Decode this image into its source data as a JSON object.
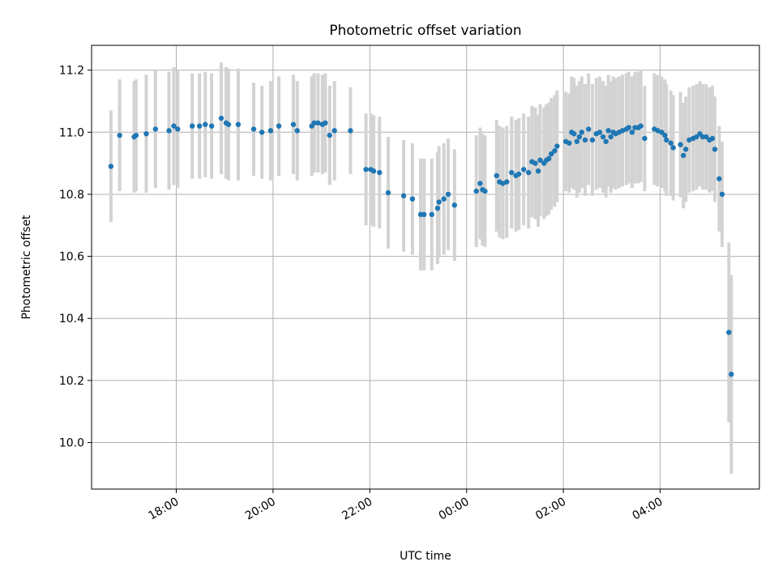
{
  "chart_data": {
    "type": "scatter",
    "title": "Photometric offset variation",
    "xlabel": "UTC time",
    "ylabel": "Photometric offset",
    "x_unit": "hours UTC (values past 24 are after midnight)",
    "xlim": [
      16.25,
      30.05
    ],
    "ylim": [
      9.85,
      11.28
    ],
    "x_ticks": [
      {
        "value": 18,
        "label": "18:00"
      },
      {
        "value": 20,
        "label": "20:00"
      },
      {
        "value": 22,
        "label": "22:00"
      },
      {
        "value": 24,
        "label": "00:00"
      },
      {
        "value": 26,
        "label": "02:00"
      },
      {
        "value": 28,
        "label": "04:00"
      }
    ],
    "y_ticks": [
      {
        "value": 10.0,
        "label": "10.0"
      },
      {
        "value": 10.2,
        "label": "10.2"
      },
      {
        "value": 10.4,
        "label": "10.4"
      },
      {
        "value": 10.6,
        "label": "10.6"
      },
      {
        "value": 10.8,
        "label": "10.8"
      },
      {
        "value": 11.0,
        "label": "11.0"
      },
      {
        "value": 11.2,
        "label": "11.2"
      }
    ],
    "grid": true,
    "colors": {
      "points": "#1f77b4",
      "errorbars": "#d3d3d3",
      "grid": "#b0b0b0"
    },
    "points": [
      [
        16.65,
        10.89,
        0.18
      ],
      [
        16.83,
        10.99,
        0.18
      ],
      [
        17.13,
        10.985,
        0.18
      ],
      [
        17.17,
        10.99,
        0.18
      ],
      [
        17.38,
        10.995,
        0.19
      ],
      [
        17.57,
        11.01,
        0.19
      ],
      [
        17.85,
        11.005,
        0.19
      ],
      [
        17.95,
        11.02,
        0.19
      ],
      [
        18.03,
        11.01,
        0.19
      ],
      [
        18.33,
        11.02,
        0.17
      ],
      [
        18.48,
        11.02,
        0.17
      ],
      [
        18.6,
        11.025,
        0.17
      ],
      [
        18.73,
        11.02,
        0.17
      ],
      [
        18.93,
        11.045,
        0.18
      ],
      [
        19.03,
        11.03,
        0.18
      ],
      [
        19.08,
        11.025,
        0.18
      ],
      [
        19.28,
        11.025,
        0.18
      ],
      [
        19.6,
        11.01,
        0.15
      ],
      [
        19.77,
        11.0,
        0.15
      ],
      [
        19.95,
        11.005,
        0.16
      ],
      [
        20.12,
        11.02,
        0.16
      ],
      [
        20.42,
        11.025,
        0.16
      ],
      [
        20.5,
        11.005,
        0.16
      ],
      [
        20.8,
        11.02,
        0.16
      ],
      [
        20.85,
        11.03,
        0.16
      ],
      [
        20.93,
        11.03,
        0.16
      ],
      [
        21.02,
        11.025,
        0.16
      ],
      [
        21.08,
        11.03,
        0.16
      ],
      [
        21.17,
        10.99,
        0.16
      ],
      [
        21.27,
        11.005,
        0.16
      ],
      [
        21.6,
        11.005,
        0.14
      ],
      [
        21.92,
        10.88,
        0.18
      ],
      [
        22.02,
        10.88,
        0.18
      ],
      [
        22.08,
        10.875,
        0.18
      ],
      [
        22.2,
        10.87,
        0.18
      ],
      [
        22.38,
        10.805,
        0.18
      ],
      [
        22.7,
        10.795,
        0.18
      ],
      [
        22.88,
        10.785,
        0.18
      ],
      [
        23.05,
        10.735,
        0.18
      ],
      [
        23.12,
        10.735,
        0.18
      ],
      [
        23.28,
        10.735,
        0.18
      ],
      [
        23.4,
        10.755,
        0.18
      ],
      [
        23.43,
        10.775,
        0.18
      ],
      [
        23.53,
        10.785,
        0.18
      ],
      [
        23.62,
        10.8,
        0.18
      ],
      [
        23.75,
        10.765,
        0.18
      ],
      [
        24.2,
        10.81,
        0.18
      ],
      [
        24.28,
        10.835,
        0.18
      ],
      [
        24.33,
        10.815,
        0.18
      ],
      [
        24.38,
        10.81,
        0.18
      ],
      [
        24.62,
        10.86,
        0.18
      ],
      [
        24.68,
        10.84,
        0.18
      ],
      [
        24.75,
        10.835,
        0.18
      ],
      [
        24.83,
        10.84,
        0.18
      ],
      [
        24.93,
        10.87,
        0.18
      ],
      [
        25.02,
        10.86,
        0.18
      ],
      [
        25.08,
        10.865,
        0.18
      ],
      [
        25.18,
        10.88,
        0.18
      ],
      [
        25.28,
        10.87,
        0.18
      ],
      [
        25.35,
        10.905,
        0.18
      ],
      [
        25.42,
        10.9,
        0.18
      ],
      [
        25.48,
        10.875,
        0.18
      ],
      [
        25.52,
        10.91,
        0.18
      ],
      [
        25.6,
        10.9,
        0.18
      ],
      [
        25.65,
        10.91,
        0.18
      ],
      [
        25.7,
        10.915,
        0.18
      ],
      [
        25.75,
        10.93,
        0.18
      ],
      [
        25.82,
        10.94,
        0.18
      ],
      [
        25.87,
        10.955,
        0.18
      ],
      [
        26.05,
        10.97,
        0.16
      ],
      [
        26.12,
        10.965,
        0.16
      ],
      [
        26.17,
        11.0,
        0.18
      ],
      [
        26.22,
        10.995,
        0.18
      ],
      [
        26.28,
        10.97,
        0.18
      ],
      [
        26.33,
        10.985,
        0.18
      ],
      [
        26.38,
        11.0,
        0.18
      ],
      [
        26.45,
        10.975,
        0.18
      ],
      [
        26.52,
        11.01,
        0.18
      ],
      [
        26.6,
        10.975,
        0.18
      ],
      [
        26.68,
        10.995,
        0.18
      ],
      [
        26.75,
        11.0,
        0.18
      ],
      [
        26.82,
        10.985,
        0.18
      ],
      [
        26.88,
        10.97,
        0.18
      ],
      [
        26.93,
        11.005,
        0.18
      ],
      [
        26.98,
        10.985,
        0.18
      ],
      [
        27.03,
        11.0,
        0.18
      ],
      [
        27.08,
        10.995,
        0.18
      ],
      [
        27.15,
        11.0,
        0.18
      ],
      [
        27.22,
        11.005,
        0.18
      ],
      [
        27.3,
        11.01,
        0.18
      ],
      [
        27.35,
        11.015,
        0.18
      ],
      [
        27.42,
        11.0,
        0.18
      ],
      [
        27.48,
        11.015,
        0.18
      ],
      [
        27.55,
        11.015,
        0.18
      ],
      [
        27.6,
        11.02,
        0.18
      ],
      [
        27.68,
        10.98,
        0.17
      ],
      [
        27.88,
        11.01,
        0.18
      ],
      [
        27.95,
        11.005,
        0.18
      ],
      [
        28.03,
        11.0,
        0.18
      ],
      [
        28.1,
        10.99,
        0.18
      ],
      [
        28.13,
        10.975,
        0.18
      ],
      [
        28.22,
        10.965,
        0.17
      ],
      [
        28.27,
        10.95,
        0.17
      ],
      [
        28.42,
        10.96,
        0.17
      ],
      [
        28.48,
        10.925,
        0.17
      ],
      [
        28.53,
        10.945,
        0.17
      ],
      [
        28.6,
        10.975,
        0.17
      ],
      [
        28.68,
        10.98,
        0.17
      ],
      [
        28.75,
        10.985,
        0.17
      ],
      [
        28.82,
        10.995,
        0.17
      ],
      [
        28.88,
        10.985,
        0.17
      ],
      [
        28.95,
        10.985,
        0.17
      ],
      [
        29.02,
        10.975,
        0.17
      ],
      [
        29.08,
        10.98,
        0.17
      ],
      [
        29.13,
        10.945,
        0.17
      ],
      [
        29.22,
        10.85,
        0.17
      ],
      [
        29.28,
        10.8,
        0.17
      ],
      [
        29.42,
        10.355,
        0.29
      ],
      [
        29.47,
        10.22,
        0.32
      ]
    ]
  }
}
